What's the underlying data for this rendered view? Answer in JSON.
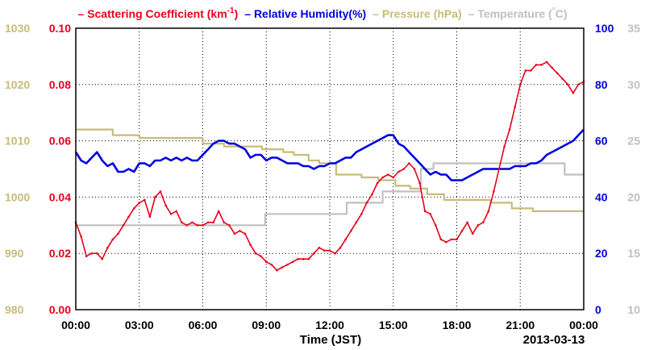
{
  "colors": {
    "scattering": "#e8001c",
    "humidity": "#0000e0",
    "pressure": "#c8bc78",
    "temperature": "#c0c0c0",
    "grid": "#000000"
  },
  "legend": [
    {
      "key": "scattering",
      "label_main": "Scattering Coefficient (km",
      "label_sup": "-1",
      "label_end": ")"
    },
    {
      "key": "humidity",
      "label_main": "Relative Humidity(%)",
      "label_sup": "",
      "label_end": ""
    },
    {
      "key": "pressure",
      "label_main": "Pressure (hPa)",
      "label_sup": "",
      "label_end": ""
    },
    {
      "key": "temperature",
      "label_main": "Temperature (",
      "label_sup": "°",
      "label_end": "C)"
    }
  ],
  "chart_data": {
    "type": "line",
    "xlabel": "Time (JST)",
    "date_label": "2013-03-13",
    "x_range_hours": [
      0,
      24
    ],
    "x_ticks": [
      "00:00",
      "03:00",
      "06:00",
      "09:00",
      "12:00",
      "15:00",
      "18:00",
      "21:00",
      "00:00"
    ],
    "grid": true,
    "axes": {
      "scattering": {
        "range": [
          0.0,
          0.1
        ],
        "ticks": [
          "0.00",
          "0.02",
          "0.04",
          "0.06",
          "0.08",
          "0.10"
        ],
        "side": "left-inner"
      },
      "pressure": {
        "range": [
          980,
          1030
        ],
        "ticks": [
          "980",
          "990",
          "1000",
          "1010",
          "1020",
          "1030"
        ],
        "side": "left-outer"
      },
      "humidity": {
        "range": [
          0,
          100
        ],
        "ticks": [
          "0",
          "20",
          "40",
          "60",
          "80",
          "100"
        ],
        "side": "right-inner"
      },
      "temperature": {
        "range": [
          10,
          35
        ],
        "ticks": [
          "10",
          "15",
          "20",
          "25",
          "30",
          "35"
        ],
        "side": "right-outer"
      }
    },
    "series": [
      {
        "key": "scattering",
        "name": "Scattering Coefficient",
        "x": [
          0,
          0.25,
          0.5,
          0.75,
          1,
          1.25,
          1.5,
          1.75,
          2,
          2.25,
          2.5,
          2.75,
          3,
          3.25,
          3.5,
          3.75,
          4,
          4.25,
          4.5,
          4.75,
          5,
          5.25,
          5.5,
          5.75,
          6,
          6.25,
          6.5,
          6.75,
          7,
          7.25,
          7.5,
          7.75,
          8,
          8.25,
          8.5,
          8.75,
          9,
          9.25,
          9.5,
          9.75,
          10,
          10.25,
          10.5,
          10.75,
          11,
          11.25,
          11.5,
          11.75,
          12,
          12.25,
          12.5,
          12.75,
          13,
          13.25,
          13.5,
          13.75,
          14,
          14.25,
          14.5,
          14.75,
          15,
          15.25,
          15.5,
          15.75,
          16,
          16.25,
          16.5,
          16.75,
          17,
          17.25,
          17.5,
          17.75,
          18,
          18.25,
          18.5,
          18.75,
          19,
          19.25,
          19.5,
          19.75,
          20,
          20.25,
          20.5,
          20.75,
          21,
          21.25,
          21.5,
          21.75,
          22,
          22.25,
          22.5,
          22.75,
          23,
          23.25,
          23.5,
          23.75,
          24
        ],
        "y": [
          0.031,
          0.026,
          0.019,
          0.02,
          0.02,
          0.018,
          0.022,
          0.025,
          0.027,
          0.03,
          0.033,
          0.036,
          0.038,
          0.039,
          0.033,
          0.04,
          0.042,
          0.037,
          0.034,
          0.035,
          0.031,
          0.03,
          0.031,
          0.03,
          0.03,
          0.031,
          0.031,
          0.035,
          0.031,
          0.03,
          0.027,
          0.028,
          0.027,
          0.023,
          0.02,
          0.019,
          0.017,
          0.016,
          0.014,
          0.015,
          0.016,
          0.017,
          0.018,
          0.018,
          0.018,
          0.02,
          0.022,
          0.021,
          0.021,
          0.02,
          0.022,
          0.025,
          0.028,
          0.031,
          0.034,
          0.038,
          0.041,
          0.045,
          0.047,
          0.048,
          0.047,
          0.049,
          0.05,
          0.052,
          0.05,
          0.045,
          0.035,
          0.034,
          0.03,
          0.025,
          0.024,
          0.025,
          0.025,
          0.028,
          0.031,
          0.027,
          0.03,
          0.031,
          0.035,
          0.042,
          0.05,
          0.058,
          0.064,
          0.072,
          0.08,
          0.085,
          0.085,
          0.087,
          0.087,
          0.088,
          0.086,
          0.084,
          0.082,
          0.08,
          0.077,
          0.08,
          0.081
        ]
      },
      {
        "key": "humidity",
        "name": "Relative Humidity",
        "x": [
          0,
          0.25,
          0.5,
          0.75,
          1,
          1.25,
          1.5,
          1.75,
          2,
          2.25,
          2.5,
          2.75,
          3,
          3.25,
          3.5,
          3.75,
          4,
          4.25,
          4.5,
          4.75,
          5,
          5.25,
          5.5,
          5.75,
          6,
          6.25,
          6.5,
          6.75,
          7,
          7.25,
          7.5,
          7.75,
          8,
          8.25,
          8.5,
          8.75,
          9,
          9.25,
          9.5,
          9.75,
          10,
          10.25,
          10.5,
          10.75,
          11,
          11.25,
          11.5,
          11.75,
          12,
          12.25,
          12.5,
          12.75,
          13,
          13.25,
          13.5,
          13.75,
          14,
          14.25,
          14.5,
          14.75,
          15,
          15.25,
          15.5,
          15.75,
          16,
          16.25,
          16.5,
          16.75,
          17,
          17.25,
          17.5,
          17.75,
          18,
          18.25,
          18.5,
          18.75,
          19,
          19.25,
          19.5,
          19.75,
          20,
          20.25,
          20.5,
          20.75,
          21,
          21.25,
          21.5,
          21.75,
          22,
          22.25,
          22.5,
          22.75,
          23,
          23.25,
          23.5,
          23.75,
          24
        ],
        "y": [
          56,
          53,
          52,
          54,
          56,
          53,
          51,
          52,
          49,
          49,
          50,
          49,
          52,
          52,
          51,
          53,
          53,
          54,
          53,
          54,
          53,
          54,
          53,
          53,
          55,
          57,
          59,
          60,
          60,
          59,
          59,
          58,
          57,
          54,
          55,
          55,
          53,
          54,
          54,
          53,
          52,
          52,
          52,
          51,
          51,
          50,
          51,
          51,
          52,
          52,
          53,
          54,
          54,
          56,
          57,
          58,
          59,
          60,
          61,
          62,
          62,
          59,
          58,
          56,
          54,
          52,
          50,
          48,
          49,
          48,
          48,
          46,
          46,
          46,
          47,
          48,
          49,
          50,
          50,
          50,
          50,
          50,
          50,
          51,
          51,
          51,
          52,
          52,
          53,
          55,
          56,
          57,
          58,
          59,
          60,
          62,
          64
        ]
      },
      {
        "key": "pressure",
        "name": "Pressure",
        "x": [
          0,
          1.75,
          1.75,
          3,
          3,
          6,
          6,
          7,
          7,
          8.8,
          8.8,
          9.8,
          9.8,
          10.3,
          10.3,
          11,
          11,
          11.5,
          11.5,
          12.3,
          12.3,
          13.5,
          13.5,
          14.3,
          14.3,
          15.1,
          15.1,
          15.8,
          15.8,
          16.6,
          16.6,
          17.4,
          17.4,
          19.6,
          19.6,
          20.6,
          20.6,
          21.6,
          21.6,
          24
        ],
        "y": [
          1012,
          1012,
          1011,
          1011,
          1010.5,
          1010.5,
          1009.5,
          1009.5,
          1009,
          1009,
          1008.5,
          1008.5,
          1008,
          1008,
          1007.5,
          1007.5,
          1006.5,
          1006.5,
          1006,
          1006,
          1004,
          1004,
          1003.5,
          1003.5,
          1003,
          1003,
          1002,
          1002,
          1001.5,
          1001.5,
          1000.5,
          1000.5,
          999.5,
          999.5,
          999,
          999,
          998,
          998,
          997.5,
          997.5
        ]
      },
      {
        "key": "temperature",
        "name": "Temperature",
        "x": [
          0,
          8.95,
          8.95,
          12.8,
          12.8,
          14.5,
          14.5,
          16.3,
          16.3,
          16.9,
          16.9,
          23.1,
          23.1,
          24
        ],
        "y": [
          17.5,
          17.5,
          18.5,
          18.5,
          19.5,
          19.5,
          20.5,
          20.5,
          22.5,
          22.5,
          23,
          23,
          22,
          22
        ]
      }
    ]
  }
}
